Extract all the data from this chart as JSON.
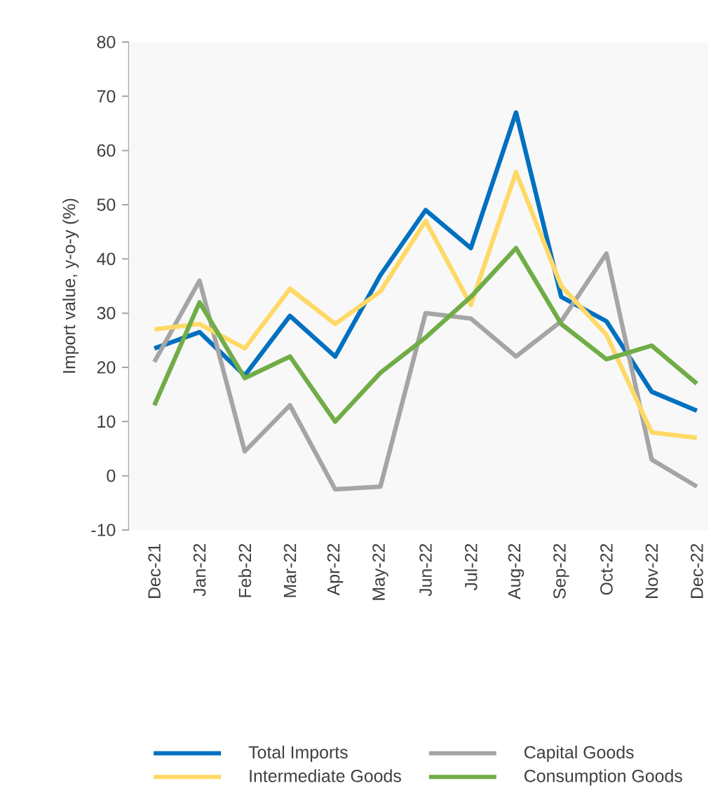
{
  "chart_data": {
    "type": "line",
    "ylabel": "Import value, y-o-y (%)",
    "categories": [
      "Dec-21",
      "Jan-22",
      "Feb-22",
      "Mar-22",
      "Apr-22",
      "May-22",
      "Jun-22",
      "Jul-22",
      "Aug-22",
      "Sep-22",
      "Oct-22",
      "Nov-22",
      "Dec-22"
    ],
    "series": [
      {
        "name": "Total Imports",
        "color": "#0070c0",
        "values": [
          23.5,
          26.5,
          18.5,
          29.5,
          22,
          37,
          49,
          42,
          67,
          33,
          28.5,
          15.5,
          12
        ]
      },
      {
        "name": "Capital Goods",
        "color": "#a5a5a5",
        "values": [
          21,
          36,
          4.5,
          13,
          -2.5,
          -2,
          30,
          29,
          22,
          28.5,
          41,
          3,
          -2
        ]
      },
      {
        "name": "Intermediate Goods",
        "color": "#ffd966",
        "values": [
          27,
          28,
          23.5,
          34.5,
          28,
          34,
          47,
          31.5,
          56,
          35,
          26,
          8,
          7
        ]
      },
      {
        "name": "Consumption Goods",
        "color": "#70ad47",
        "values": [
          13,
          32,
          18,
          22,
          10,
          19,
          25.5,
          33,
          42,
          28,
          21.5,
          24,
          17
        ]
      }
    ],
    "ylim": [
      -10,
      80
    ],
    "yticks": [
      -10,
      0,
      10,
      20,
      30,
      40,
      50,
      60,
      70,
      80
    ],
    "grid": false,
    "legend": "bottom",
    "marker": "none",
    "line_style": "solid"
  }
}
